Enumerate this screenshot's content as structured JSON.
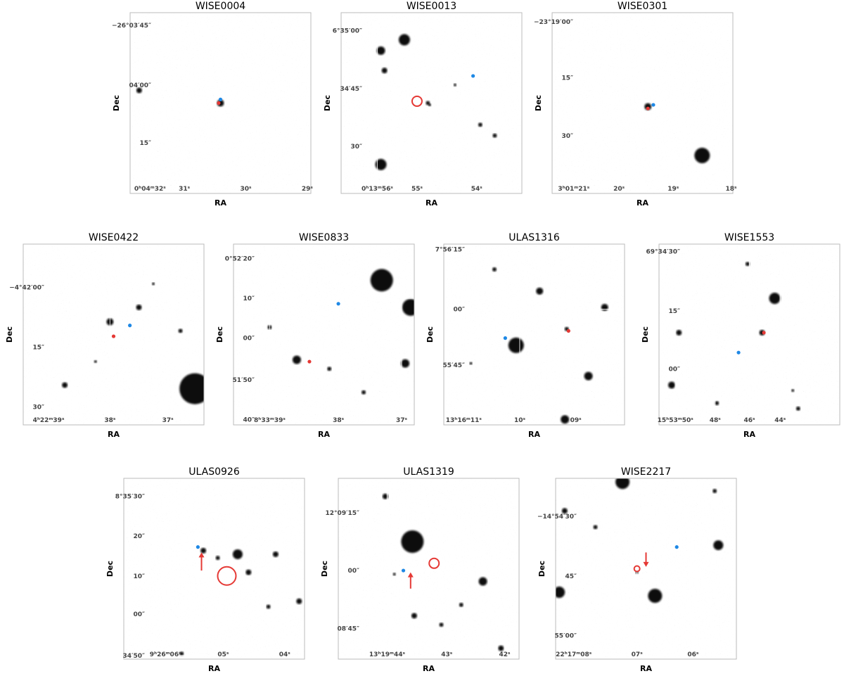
{
  "panels": [
    {
      "title": "WISE0004",
      "xlabel": "RA",
      "ylabel": "Dec",
      "ra_ticks": [
        "0ʰ04ᵐ32ˢ",
        "31ˢ",
        "30ˢ",
        "29ˢ"
      ],
      "dec_ticks": [
        "−26°03′45″",
        "04′00″",
        "15″"
      ]
    },
    {
      "title": "WISE0013",
      "xlabel": "RA",
      "ylabel": "Dec",
      "ra_ticks": [
        "0ʰ13ᵐ56ˢ",
        "55ˢ",
        "54ˢ"
      ],
      "dec_ticks": [
        "6°35′00″",
        "34′45″",
        "30″"
      ]
    },
    {
      "title": "WISE0301",
      "xlabel": "RA",
      "ylabel": "Dec",
      "ra_ticks": [
        "3ʰ01ᵐ21ˢ",
        "20ˢ",
        "19ˢ",
        "18ˢ"
      ],
      "dec_ticks": [
        "−23°19′00″",
        "15″",
        "30″"
      ]
    },
    {
      "title": "WISE0422",
      "xlabel": "RA",
      "ylabel": "Dec",
      "ra_ticks": [
        "4ʰ22ᵐ39ˢ",
        "38ˢ",
        "37ˢ"
      ],
      "dec_ticks": [
        "−4°42′00″",
        "15″",
        "30″"
      ]
    },
    {
      "title": "WISE0833",
      "xlabel": "RA",
      "ylabel": "Dec",
      "ra_ticks": [
        "8ʰ33ᵐ39ˢ",
        "38ˢ",
        "37ˢ"
      ],
      "dec_ticks": [
        "0°52′20″",
        "10″",
        "00″",
        "51′50″",
        "40″"
      ]
    },
    {
      "title": "ULAS1316",
      "xlabel": "RA",
      "ylabel": "Dec",
      "ra_ticks": [
        "13ʰ16ᵐ11ˢ",
        "10ˢ",
        "09ˢ"
      ],
      "dec_ticks": [
        "7°56′15″",
        "00″",
        "55′45″"
      ]
    },
    {
      "title": "WISE1553",
      "xlabel": "RA",
      "ylabel": "Dec",
      "ra_ticks": [
        "15ʰ53ᵐ50ˢ",
        "48ˢ",
        "46ˢ",
        "44ˢ"
      ],
      "dec_ticks": [
        "69°34′30″",
        "15″",
        "00″"
      ]
    },
    {
      "title": "ULAS0926",
      "xlabel": "RA",
      "ylabel": "Dec",
      "ra_ticks": [
        "9ʰ26ᵐ06ˢ",
        "05ˢ",
        "04ˢ"
      ],
      "dec_ticks": [
        "8°35′30″",
        "20″",
        "10″",
        "00″",
        "34′50″"
      ]
    },
    {
      "title": "ULAS1319",
      "xlabel": "RA",
      "ylabel": "Dec",
      "ra_ticks": [
        "13ʰ19ᵐ44ˢ",
        "43ˢ",
        "42ˢ"
      ],
      "dec_ticks": [
        "12°09′15″",
        "00″",
        "08′45″"
      ]
    },
    {
      "title": "WISE2217",
      "xlabel": "RA",
      "ylabel": "Dec",
      "ra_ticks": [
        "22ʰ17ᵐ08ˢ",
        "07ˢ",
        "06ˢ"
      ],
      "dec_ticks": [
        "−14°54′30″",
        "45″",
        "55′00″"
      ]
    }
  ]
}
